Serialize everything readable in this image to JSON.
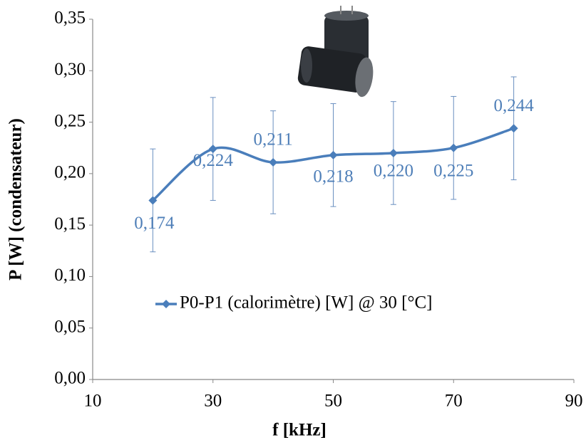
{
  "chart_data": {
    "type": "line",
    "x": [
      20,
      30,
      40,
      50,
      60,
      70,
      80
    ],
    "series": [
      {
        "name": "P0-P1 (calorimètre) [W] @ 30 [°C]",
        "color": "#4a7ebb",
        "values": [
          0.174,
          0.224,
          0.211,
          0.218,
          0.22,
          0.225,
          0.244
        ],
        "value_labels": [
          "0,174",
          "0,224",
          "0,211",
          "0,218",
          "0,220",
          "0,225",
          "0,244"
        ],
        "errors": [
          0.05,
          0.05,
          0.05,
          0.05,
          0.05,
          0.05,
          0.05
        ]
      }
    ],
    "xlabel": "f [kHz]",
    "ylabel": "P [W] (condensateur)",
    "xlim": [
      10,
      90
    ],
    "xticks": [
      10,
      30,
      50,
      70,
      90
    ],
    "ylim": [
      0,
      0.35
    ],
    "yticks": [
      {
        "value": 0,
        "label": "0,00"
      },
      {
        "value": 0.05,
        "label": "0,05"
      },
      {
        "value": 0.1,
        "label": "0,10"
      },
      {
        "value": 0.15,
        "label": "0,15"
      },
      {
        "value": 0.2,
        "label": "0,20"
      },
      {
        "value": 0.25,
        "label": "0,25"
      },
      {
        "value": 0.3,
        "label": "0,30"
      },
      {
        "value": 0.35,
        "label": "0,35"
      }
    ],
    "smooth": true,
    "grid": false,
    "legend": "center"
  }
}
